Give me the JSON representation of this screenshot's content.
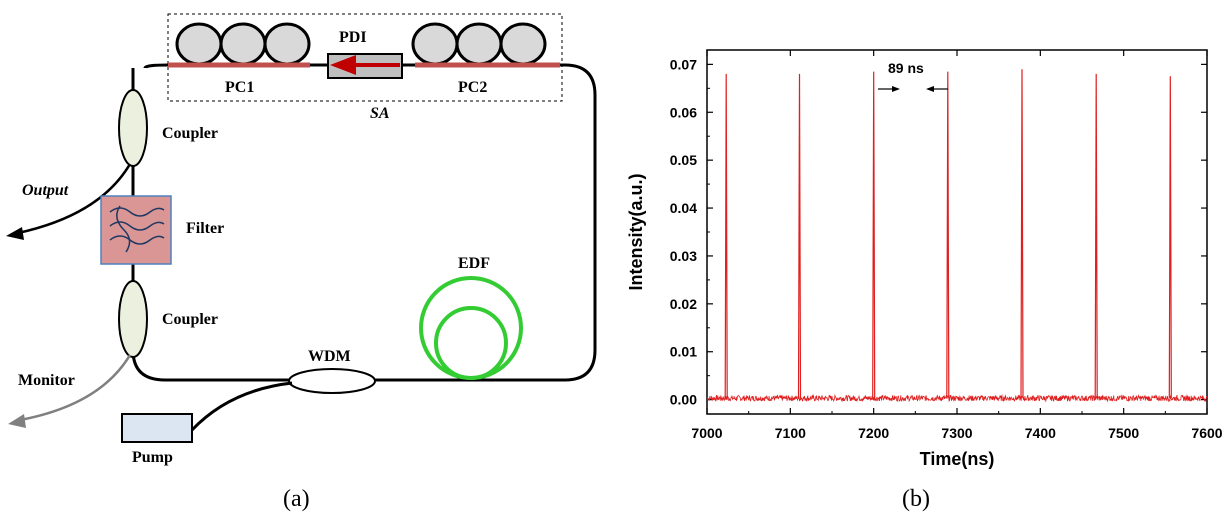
{
  "diagram": {
    "labels": {
      "pdi": "PDI",
      "pc1": "PC1",
      "pc2": "PC2",
      "sa": "SA",
      "coupler_top": "Coupler",
      "coupler_bottom": "Coupler",
      "output": "Output",
      "filter": "Filter",
      "edf": "EDF",
      "wdm": "WDM",
      "monitor": "Monitor",
      "pump": "Pump"
    },
    "colors": {
      "fiber": "#000000",
      "pc_fiber": "#c0504d",
      "pdi_arrow": "#c00000",
      "filter_fill": "#d99694",
      "coupler_fill": "#ebf1de",
      "edf": "#33cc33",
      "pump_fill": "#dce6f2",
      "monitor_line": "#808080"
    }
  },
  "panel_labels": {
    "a": "(a)",
    "b": "(b)"
  },
  "annotation": "89 ns",
  "chart_data": {
    "type": "line",
    "title": "",
    "xlabel": "Time(ns)",
    "ylabel": "Intensity(a.u.)",
    "xlim": [
      7000,
      7600
    ],
    "ylim": [
      -0.003,
      0.073
    ],
    "xticks": [
      "7000",
      "7100",
      "7200",
      "7300",
      "7400",
      "7500",
      "7600"
    ],
    "yticks": [
      "0.00",
      "0.01",
      "0.02",
      "0.03",
      "0.04",
      "0.05",
      "0.06",
      "0.07"
    ],
    "series": [
      {
        "color": "#e02020",
        "pulse_times": [
          7023,
          7111,
          7200,
          7289,
          7378,
          7467,
          7556
        ],
        "pulse_peaks": [
          0.068,
          0.068,
          0.0685,
          0.0685,
          0.069,
          0.068,
          0.0675
        ],
        "baseline": 0.0003
      }
    ],
    "grid": false,
    "legend": "none"
  }
}
